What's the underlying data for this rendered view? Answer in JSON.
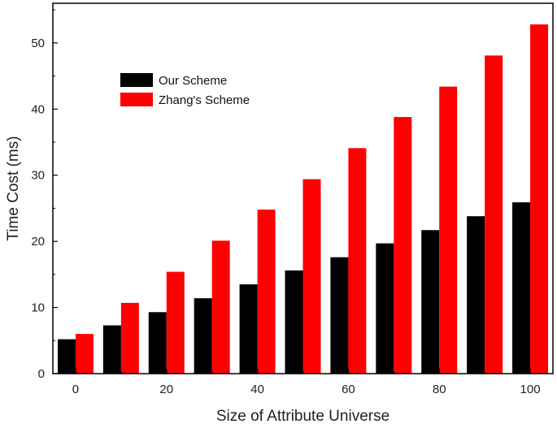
{
  "chart_data": {
    "type": "bar",
    "xlabel": "Size of Attribute Universe",
    "ylabel": "Time Cost (ms)",
    "categories": [
      0,
      10,
      20,
      30,
      40,
      50,
      60,
      70,
      80,
      90,
      100
    ],
    "x_tick_labels": [
      "0",
      "20",
      "40",
      "60",
      "80",
      "100"
    ],
    "x_ticks": [
      0,
      20,
      40,
      60,
      80,
      100
    ],
    "y_tick_labels": [
      "0",
      "10",
      "20",
      "30",
      "40",
      "50"
    ],
    "y_ticks": [
      0,
      10,
      20,
      30,
      40,
      50
    ],
    "xlim": [
      -5,
      105
    ],
    "ylim": [
      0,
      56
    ],
    "grid": false,
    "legend_position": "top-left",
    "series": [
      {
        "name": "Our Scheme",
        "color": "#000000",
        "values": [
          5.2,
          7.3,
          9.3,
          11.4,
          13.5,
          15.6,
          17.6,
          19.7,
          21.7,
          23.8,
          25.9
        ]
      },
      {
        "name": "Zhang's Scheme",
        "color": "#ff0000",
        "values": [
          6.0,
          10.7,
          15.4,
          20.1,
          24.8,
          29.4,
          34.1,
          38.8,
          43.4,
          48.1,
          52.8
        ]
      }
    ]
  }
}
